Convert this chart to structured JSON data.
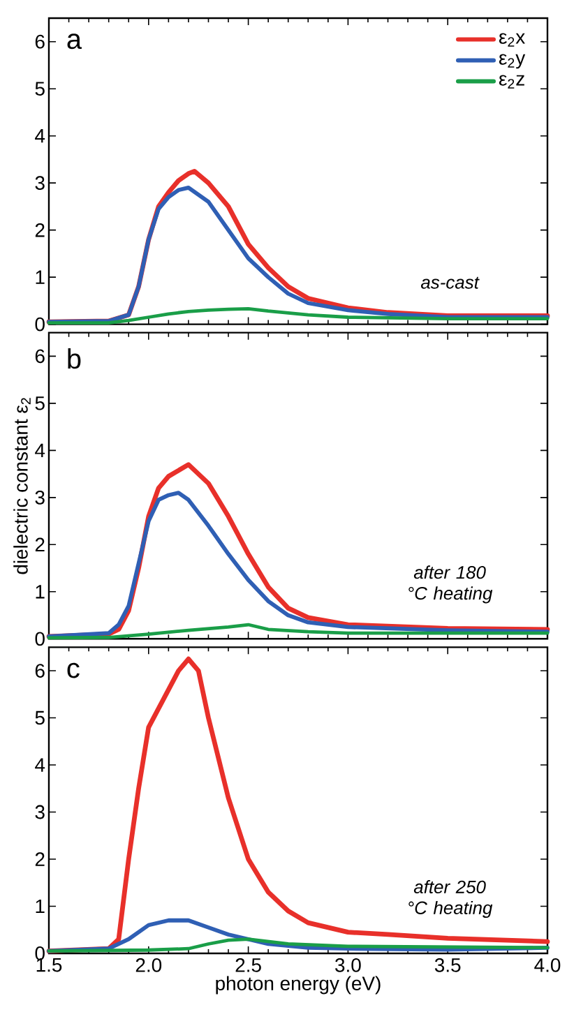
{
  "chart_data": [
    {
      "type": "line",
      "annotations": [
        "a",
        "as-cast"
      ],
      "legend": "top right",
      "tick_labels": "y",
      "xlim": [
        1.5,
        4.0
      ],
      "xticks": [
        1.5,
        2,
        2.5,
        3,
        3.5,
        4
      ],
      "ylim": [
        0,
        6.5
      ],
      "yticks": [
        0,
        1,
        2,
        3,
        4,
        5,
        6
      ],
      "series": [
        {
          "name": "ε$_{2}$x",
          "color": "#e8302a",
          "x": [
            1.5,
            1.8,
            1.9,
            1.95,
            2.0,
            2.05,
            2.1,
            2.15,
            2.2,
            2.23,
            2.3,
            2.4,
            2.5,
            2.6,
            2.7,
            2.8,
            3.0,
            3.2,
            3.5,
            4.0
          ],
          "values": [
            0.05,
            0.07,
            0.2,
            0.8,
            1.8,
            2.5,
            2.8,
            3.05,
            3.2,
            3.25,
            3.0,
            2.5,
            1.7,
            1.2,
            0.8,
            0.55,
            0.35,
            0.25,
            0.18,
            0.18
          ]
        },
        {
          "name": "ε$_{2}$y",
          "color": "#2f5fb4",
          "x": [
            1.5,
            1.8,
            1.9,
            1.95,
            2.0,
            2.05,
            2.1,
            2.15,
            2.2,
            2.3,
            2.4,
            2.5,
            2.6,
            2.7,
            2.8,
            3.0,
            3.2,
            3.5,
            4.0
          ],
          "values": [
            0.05,
            0.07,
            0.2,
            0.8,
            1.8,
            2.45,
            2.7,
            2.85,
            2.9,
            2.6,
            2.0,
            1.4,
            1.0,
            0.65,
            0.45,
            0.3,
            0.22,
            0.15,
            0.15
          ]
        },
        {
          "name": "ε$_{2}$z",
          "color": "#1a9e48",
          "x": [
            1.5,
            1.8,
            1.9,
            2.0,
            2.1,
            2.2,
            2.3,
            2.4,
            2.5,
            2.6,
            2.8,
            3.0,
            3.5,
            4.0
          ],
          "values": [
            0.03,
            0.03,
            0.08,
            0.15,
            0.22,
            0.27,
            0.3,
            0.32,
            0.33,
            0.28,
            0.2,
            0.15,
            0.12,
            0.12
          ]
        }
      ]
    },
    {
      "type": "line",
      "annotations": [
        "b",
        "after 180 °C heating"
      ],
      "ylabel": "dielectric constant ε$_{2}$",
      "tick_labels": "y",
      "xlim": [
        1.5,
        4.0
      ],
      "xticks": [
        1.5,
        2,
        2.5,
        3,
        3.5,
        4
      ],
      "ylim": [
        0,
        6.5
      ],
      "yticks": [
        0,
        1,
        2,
        3,
        4,
        5,
        6
      ],
      "series": [
        {
          "color": "#e8302a",
          "x": [
            1.5,
            1.8,
            1.85,
            1.9,
            1.95,
            2.0,
            2.05,
            2.1,
            2.2,
            2.3,
            2.4,
            2.5,
            2.6,
            2.7,
            2.8,
            3.0,
            3.5,
            4.0
          ],
          "values": [
            0.05,
            0.1,
            0.2,
            0.6,
            1.5,
            2.6,
            3.2,
            3.45,
            3.7,
            3.3,
            2.6,
            1.8,
            1.1,
            0.65,
            0.45,
            0.3,
            0.22,
            0.2
          ]
        },
        {
          "color": "#2f5fb4",
          "x": [
            1.5,
            1.8,
            1.85,
            1.9,
            1.95,
            2.0,
            2.05,
            2.1,
            2.15,
            2.2,
            2.3,
            2.4,
            2.5,
            2.6,
            2.7,
            2.8,
            3.0,
            3.5,
            4.0
          ],
          "values": [
            0.05,
            0.12,
            0.3,
            0.7,
            1.6,
            2.5,
            2.95,
            3.05,
            3.1,
            2.95,
            2.4,
            1.8,
            1.25,
            0.8,
            0.5,
            0.35,
            0.25,
            0.18,
            0.15
          ]
        },
        {
          "color": "#1a9e48",
          "x": [
            1.5,
            1.8,
            2.0,
            2.2,
            2.4,
            2.5,
            2.6,
            2.8,
            3.0,
            4.0
          ],
          "values": [
            0.02,
            0.03,
            0.1,
            0.18,
            0.25,
            0.3,
            0.2,
            0.15,
            0.12,
            0.12
          ]
        }
      ]
    },
    {
      "type": "line",
      "annotations": [
        "c",
        "after 250 °C heating"
      ],
      "xlabel": "photon energy (eV)",
      "xlim": [
        1.5,
        4.0
      ],
      "xticks": [
        1.5,
        {
          "value": 2,
          "label": "2.0"
        },
        2.5,
        {
          "value": 3,
          "label": "3.0"
        },
        3.5,
        {
          "value": 4,
          "label": "4.0"
        }
      ],
      "ylim": [
        0,
        6.5
      ],
      "yticks": [
        0,
        1,
        2,
        3,
        4,
        5,
        6
      ],
      "series": [
        {
          "color": "#e8302a",
          "x": [
            1.5,
            1.8,
            1.85,
            1.9,
            1.95,
            2.0,
            2.05,
            2.1,
            2.15,
            2.2,
            2.25,
            2.3,
            2.4,
            2.5,
            2.6,
            2.7,
            2.8,
            3.0,
            3.2,
            3.5,
            4.0
          ],
          "values": [
            0.05,
            0.1,
            0.3,
            2.0,
            3.5,
            4.8,
            5.2,
            5.6,
            6.0,
            6.25,
            6.0,
            5.0,
            3.3,
            2.0,
            1.3,
            0.9,
            0.65,
            0.45,
            0.4,
            0.32,
            0.25
          ]
        },
        {
          "color": "#2f5fb4",
          "x": [
            1.5,
            1.8,
            1.9,
            2.0,
            2.1,
            2.2,
            2.3,
            2.4,
            2.5,
            2.6,
            2.8,
            3.0,
            3.5,
            4.0
          ],
          "values": [
            0.05,
            0.1,
            0.3,
            0.6,
            0.7,
            0.7,
            0.55,
            0.4,
            0.3,
            0.2,
            0.12,
            0.1,
            0.08,
            0.12
          ]
        },
        {
          "color": "#1a9e48",
          "x": [
            1.5,
            2.0,
            2.2,
            2.3,
            2.4,
            2.5,
            2.7,
            3.0,
            4.0
          ],
          "values": [
            0.05,
            0.07,
            0.1,
            0.2,
            0.28,
            0.3,
            0.2,
            0.15,
            0.12
          ]
        }
      ]
    }
  ]
}
